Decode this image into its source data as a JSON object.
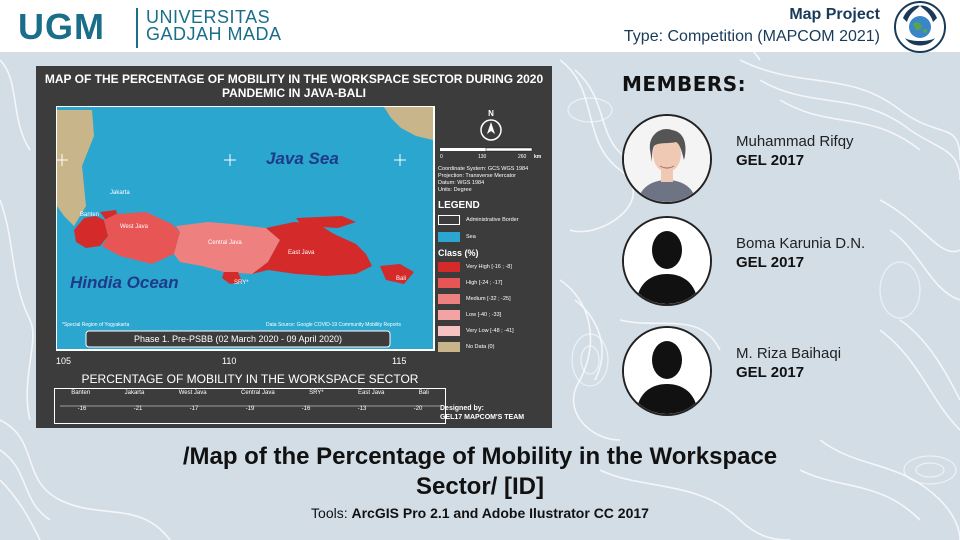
{
  "header": {
    "logo_text": "UGM",
    "university_line1": "UNIVERSITAS",
    "university_line2": "GADJAH MADA",
    "project_title": "Map Project",
    "project_type": "Type: Competition (MAPCOM 2021)"
  },
  "map": {
    "title_line1": "MAP OF THE PERCENTAGE OF MOBILITY IN THE WORKSPACE SECTOR DURING 2020",
    "title_line2": "PANDEMIC IN JAVA-BALI",
    "sea_label": "Java Sea",
    "ocean_label": "Hindia Ocean",
    "lat_label": "-5",
    "lon_labels": [
      "105",
      "110",
      "115"
    ],
    "region_labels": [
      "Jakarta",
      "Banten",
      "West Java",
      "Central Java",
      "East Java",
      "SRY*",
      "Bali"
    ],
    "footnote": "*Special Region of Yogyakarta",
    "data_source": "Data Source: Google COVID-19 Community Mobility Reports",
    "phase_label": "Phase 1. Pre-PSBB (02 March 2020 - 09 April 2020)",
    "north": "N",
    "scale_labels": [
      "0",
      "130",
      "260"
    ],
    "scale_unit": "km",
    "coord_info": [
      "Coordinate System: GCS WGS 1984",
      "Projection: Transverse Mercator",
      "Datum: WGS 1984",
      "Units: Degree"
    ],
    "legend_title": "LEGEND",
    "legend_border": "Administrative Border",
    "legend_sea": "Sea",
    "class_title": "Class (%)",
    "classes": [
      {
        "label": "Very High [-16 ; -8]",
        "color": "#d42a2a"
      },
      {
        "label": "High [-24 ; -17]",
        "color": "#e85555"
      },
      {
        "label": "Medium [-32 ; -25]",
        "color": "#ee8080"
      },
      {
        "label": "Low [-40 ; -33]",
        "color": "#f3a3a3"
      },
      {
        "label": "Very Low [-48 ; -41]",
        "color": "#f7c2c2"
      },
      {
        "label": "No Data (0)",
        "color": "#c9b58a"
      }
    ],
    "table_title": "PERCENTAGE OF MOBILITY IN THE WORKSPACE SECTOR",
    "table_headers": [
      "Banten",
      "Jakarta",
      "West Java",
      "Central Java",
      "SRY*",
      "East Java",
      "Bali"
    ],
    "table_values": [
      "-16",
      "-21",
      "-17",
      "-19",
      "-16",
      "-13",
      "-20"
    ],
    "designed_by": "Designed by:",
    "team": "GEL17 MAPCOM'S TEAM"
  },
  "members": {
    "title": "MEMBERS:",
    "list": [
      {
        "name": "Muhammad Rifqy",
        "group": "GEL 2017"
      },
      {
        "name": "Boma Karunia D.N.",
        "group": "GEL 2017"
      },
      {
        "name": "M. Riza Baihaqi",
        "group": "GEL 2017"
      }
    ]
  },
  "caption": {
    "line1": "/Map of the Percentage of Mobility in the Workspace",
    "line2": "Sector/ [ID]",
    "tools_prefix": "Tools: ",
    "tools_value": "ArcGIS Pro 2.1 and Adobe Ilustrator CC 2017"
  },
  "colors": {
    "brand": "#1a6e8a",
    "sea": "#2ba6cf",
    "panel": "#3c3c3c",
    "background": "#d3dde6"
  }
}
